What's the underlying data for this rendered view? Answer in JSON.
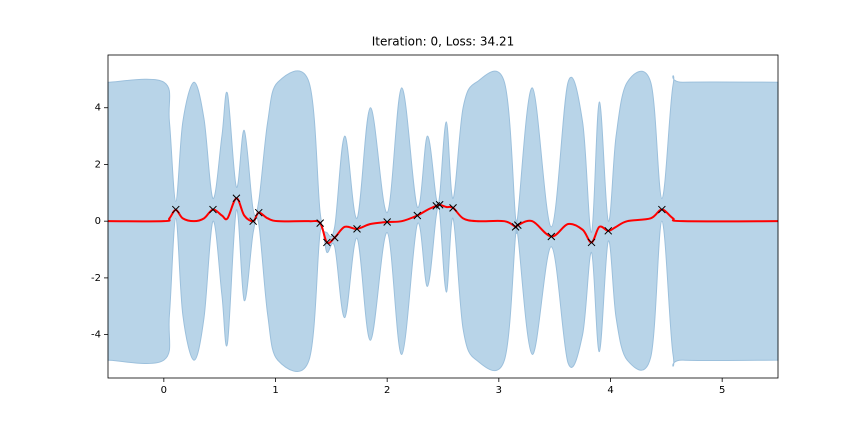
{
  "chart_data": {
    "type": "line",
    "title": "Iteration: 0, Loss: 34.21",
    "xlim": [
      -0.5,
      5.5
    ],
    "ylim": [
      -5.53,
      5.86
    ],
    "xticks": [
      0,
      1,
      2,
      3,
      4,
      5
    ],
    "yticks": [
      -4,
      -2,
      0,
      2,
      4
    ],
    "x": [
      -0.5,
      0.0,
      0.05,
      0.107,
      0.17,
      0.27,
      0.36,
      0.44,
      0.52,
      0.57,
      0.65,
      0.72,
      0.8,
      0.85,
      0.93,
      1.02,
      1.3,
      1.4,
      1.46,
      1.53,
      1.62,
      1.73,
      1.85,
      2.0,
      2.13,
      2.27,
      2.36,
      2.44,
      2.47,
      2.53,
      2.59,
      2.68,
      2.8,
      3.05,
      3.15,
      3.17,
      3.3,
      3.47,
      3.62,
      3.75,
      3.83,
      3.9,
      3.98,
      4.05,
      4.15,
      4.36,
      4.46,
      4.56,
      4.65,
      5.5
    ],
    "mean": {
      "color": "#ff0000",
      "values": [
        0,
        0,
        0.1,
        0.4,
        0.1,
        0,
        0.1,
        0.41,
        0.2,
        0.1,
        0.81,
        0.2,
        0.0,
        0.3,
        0.1,
        0,
        0,
        -0.07,
        -0.75,
        -0.58,
        -0.2,
        -0.27,
        -0.1,
        -0.03,
        0,
        0.2,
        0.4,
        0.54,
        0.58,
        0.5,
        0.47,
        0.1,
        0,
        0,
        -0.2,
        -0.14,
        0,
        -0.54,
        -0.1,
        -0.3,
        -0.75,
        -0.2,
        -0.34,
        -0.2,
        0,
        0.1,
        0.41,
        0.1,
        0,
        0
      ]
    },
    "band": {
      "color": "#b8d4e8",
      "upper": [
        4.9,
        4.9,
        3.5,
        0.7,
        3.5,
        4.9,
        3.6,
        0.8,
        3.0,
        4.5,
        1.2,
        3.2,
        0.4,
        0.7,
        3.5,
        4.9,
        4.9,
        0.3,
        -0.4,
        -0.2,
        3.0,
        0.1,
        4.0,
        0.3,
        4.7,
        0.5,
        3.0,
        0.8,
        0.9,
        3.5,
        0.8,
        4.0,
        4.9,
        4.9,
        0.1,
        0.2,
        4.7,
        -0.2,
        4.9,
        3.5,
        -0.4,
        4.2,
        0.0,
        3.0,
        4.9,
        4.9,
        0.8,
        4.8,
        4.9,
        4.9
      ],
      "lower": [
        -4.9,
        -4.9,
        -3.3,
        0.1,
        -3.3,
        -4.9,
        -3.4,
        0.0,
        -2.6,
        -4.3,
        0.4,
        -2.8,
        -0.4,
        -0.1,
        -3.3,
        -4.9,
        -4.9,
        -0.4,
        -1.1,
        -0.9,
        -3.4,
        -0.6,
        -4.2,
        -0.4,
        -4.7,
        -0.1,
        -2.3,
        0.2,
        0.3,
        -2.5,
        0.1,
        -3.8,
        -4.9,
        -4.9,
        -0.5,
        -0.5,
        -4.7,
        -0.9,
        -5.0,
        -4.0,
        -1.1,
        -4.6,
        -0.7,
        -3.4,
        -4.9,
        -4.8,
        0.0,
        -4.7,
        -4.9,
        -4.9
      ]
    },
    "points": {
      "color": "#000000",
      "x": [
        0.107,
        0.44,
        0.65,
        0.8,
        0.85,
        1.4,
        1.46,
        1.53,
        1.73,
        2.0,
        2.27,
        2.44,
        2.47,
        2.59,
        3.15,
        3.17,
        3.47,
        3.83,
        3.98,
        4.46
      ],
      "y": [
        0.41,
        0.41,
        0.81,
        0.0,
        0.3,
        -0.07,
        -0.75,
        -0.58,
        -0.27,
        -0.03,
        0.2,
        0.54,
        0.58,
        0.47,
        -0.2,
        -0.14,
        -0.54,
        -0.75,
        -0.34,
        0.41
      ]
    }
  }
}
